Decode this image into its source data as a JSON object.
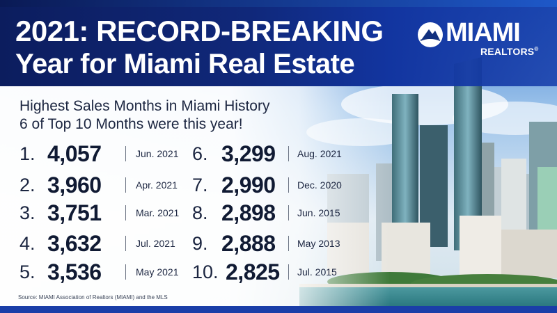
{
  "header": {
    "title_line1": "2021: RECORD-BREAKING",
    "title_line2": "Year for Miami Real Estate"
  },
  "logo": {
    "word": "MIAMI",
    "sub": "REALTORS",
    "reg": "®"
  },
  "subtitle": {
    "line1": "Highest Sales Months in Miami History",
    "line2": "6 of Top 10 Months were this year!"
  },
  "rankings": [
    {
      "rank": "1.",
      "value": "4,057",
      "month": "Jun. 2021"
    },
    {
      "rank": "2.",
      "value": "3,960",
      "month": "Apr. 2021"
    },
    {
      "rank": "3.",
      "value": "3,751",
      "month": "Mar. 2021"
    },
    {
      "rank": "4.",
      "value": "3,632",
      "month": "Jul. 2021"
    },
    {
      "rank": "5.",
      "value": "3,536",
      "month": "May 2021"
    },
    {
      "rank": "6.",
      "value": "3,299",
      "month": "Aug. 2021"
    },
    {
      "rank": "7.",
      "value": "2,990",
      "month": "Dec. 2020"
    },
    {
      "rank": "8.",
      "value": "2,898",
      "month": "Jun. 2015"
    },
    {
      "rank": "9.",
      "value": "2,888",
      "month": "May 2013"
    },
    {
      "rank": "10.",
      "value": "2,825",
      "month": "Jul. 2015"
    }
  ],
  "source": "Source: MIAMI Association of Realtors (MIAMI) and the MLS",
  "colors": {
    "header_dark": "#0c1d5e",
    "header_blue": "#1235a0",
    "text_dark": "#101a33",
    "bottom_stripe": "#1a3ea8"
  }
}
